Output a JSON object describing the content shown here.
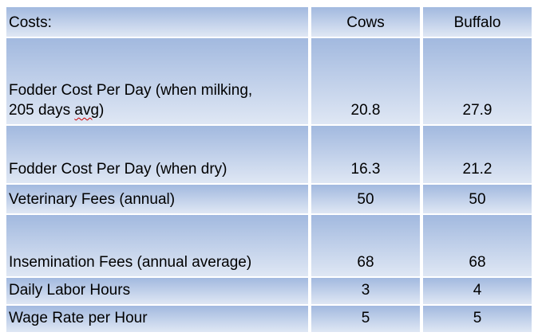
{
  "table": {
    "title_column_header": "Costs:",
    "columns": [
      "Cows",
      "Buffalo"
    ],
    "header": {
      "label": "Costs:",
      "col_cows": "Cows",
      "col_buffalo": "Buffalo"
    },
    "rows": [
      {
        "label_full": "Fodder Cost Per Day (when milking, 205 days avg)",
        "label_line1": "Fodder Cost Per Day (when milking,",
        "label_line2_pre": "205 days ",
        "label_line2_word": "avg",
        "label_line2_post": ")",
        "cows": "20.8",
        "buffalo": "27.9"
      },
      {
        "label": "Fodder Cost Per Day (when dry)",
        "cows": "16.3",
        "buffalo": "21.2"
      },
      {
        "label": "Veterinary Fees (annual)",
        "cows": "50",
        "buffalo": "50"
      },
      {
        "label": "Insemination Fees (annual average)",
        "cows": "68",
        "buffalo": "68"
      },
      {
        "label": "Daily Labor Hours",
        "cows": "3",
        "buffalo": "4"
      },
      {
        "label": "Wage Rate per Hour",
        "cows": "5",
        "buffalo": "5"
      }
    ],
    "colors": {
      "row_gradient_top": "#a2b9df",
      "row_gradient_bottom": "#dfe7f4",
      "separator": "#ffffff",
      "text": "#000000",
      "spellcheck_underline": "#cc0000"
    }
  }
}
